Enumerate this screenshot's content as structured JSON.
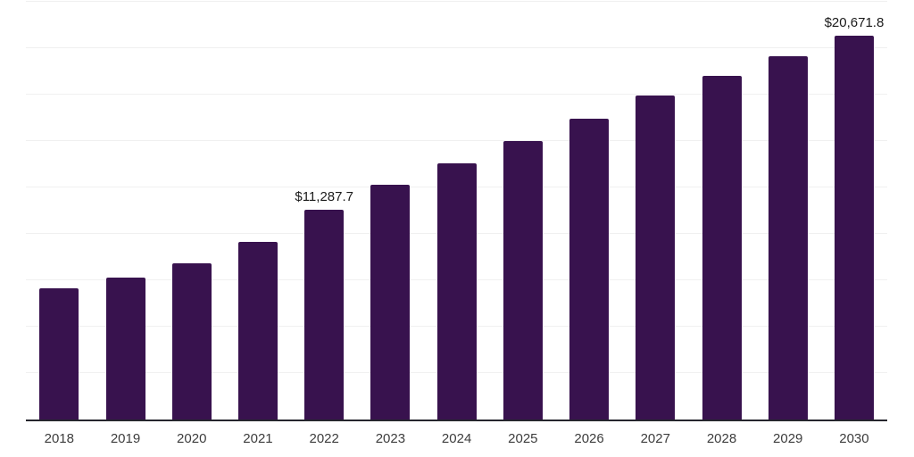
{
  "chart_data": {
    "type": "bar",
    "title": "",
    "xlabel": "",
    "ylabel": "",
    "categories": [
      "2018",
      "2019",
      "2020",
      "2021",
      "2022",
      "2023",
      "2024",
      "2025",
      "2026",
      "2027",
      "2028",
      "2029",
      "2030"
    ],
    "values": [
      7060,
      7650,
      8420,
      9570,
      11287.7,
      12630,
      13810,
      14980,
      16210,
      17450,
      18530,
      19580,
      20671.8
    ],
    "ylim": [
      0,
      22500
    ],
    "gridline_step": 2500,
    "grid": "horizontal",
    "legend": "none",
    "annotations": [
      {
        "category": "2022",
        "text": "$11,287.7"
      },
      {
        "category": "2030",
        "text": "$20,671.8"
      }
    ]
  },
  "style": {
    "background": "#ffffff",
    "bar_color": "#38124e",
    "gridline_color": "#f0f0f0",
    "axis_line_color": "#26262e",
    "x_label_color": "#3d3d3d",
    "annotation_color": "#1a1a1a"
  }
}
